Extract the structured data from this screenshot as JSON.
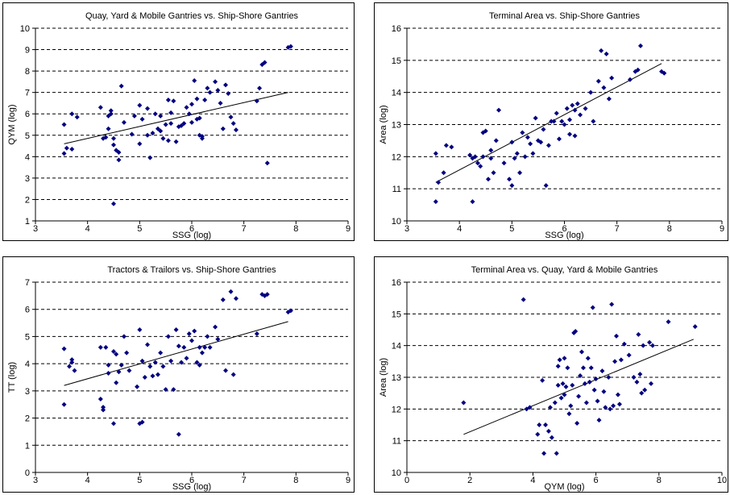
{
  "chart_data": [
    {
      "type": "scatter",
      "title": "Quay, Yard & Mobile Gantries vs. Ship-Shore Gantries",
      "xlabel": "SSG (log)",
      "ylabel": "QYM (log)",
      "xlim": [
        3,
        9
      ],
      "ylim": [
        1,
        10
      ],
      "xticks": [
        3,
        4,
        5,
        6,
        7,
        8,
        9
      ],
      "yticks": [
        1,
        2,
        3,
        4,
        5,
        6,
        7,
        8,
        9,
        10
      ],
      "grid": "horizontal-dashed",
      "marker_color": "#000080",
      "trendline": {
        "x": [
          3.55,
          7.85
        ],
        "y": [
          4.6,
          7.0
        ]
      },
      "points": [
        [
          3.55,
          5.5
        ],
        [
          3.55,
          4.15
        ],
        [
          3.6,
          4.4
        ],
        [
          3.7,
          4.35
        ],
        [
          3.7,
          6.0
        ],
        [
          3.8,
          5.85
        ],
        [
          4.25,
          6.3
        ],
        [
          4.3,
          4.85
        ],
        [
          4.35,
          4.9
        ],
        [
          4.4,
          5.9
        ],
        [
          4.45,
          6.15
        ],
        [
          4.4,
          5.3
        ],
        [
          4.45,
          6.0
        ],
        [
          4.5,
          4.55
        ],
        [
          4.5,
          4.85
        ],
        [
          4.55,
          4.3
        ],
        [
          4.6,
          3.85
        ],
        [
          4.6,
          4.2
        ],
        [
          4.65,
          7.3
        ],
        [
          4.7,
          5.6
        ],
        [
          4.5,
          1.8
        ],
        [
          4.85,
          5.05
        ],
        [
          4.9,
          5.9
        ],
        [
          5.0,
          6.4
        ],
        [
          5.0,
          4.6
        ],
        [
          5.05,
          5.75
        ],
        [
          5.15,
          6.25
        ],
        [
          5.15,
          5.0
        ],
        [
          5.2,
          3.95
        ],
        [
          5.25,
          5.1
        ],
        [
          5.3,
          6.0
        ],
        [
          5.35,
          5.3
        ],
        [
          5.4,
          5.2
        ],
        [
          5.4,
          5.9
        ],
        [
          5.45,
          4.85
        ],
        [
          5.5,
          5.5
        ],
        [
          5.55,
          6.65
        ],
        [
          5.55,
          4.75
        ],
        [
          5.6,
          5.55
        ],
        [
          5.6,
          6.05
        ],
        [
          5.65,
          6.6
        ],
        [
          5.7,
          4.7
        ],
        [
          5.75,
          5.4
        ],
        [
          5.8,
          5.45
        ],
        [
          5.85,
          5.55
        ],
        [
          5.9,
          6.3
        ],
        [
          5.95,
          6.0
        ],
        [
          6.0,
          6.45
        ],
        [
          6.0,
          5.6
        ],
        [
          6.05,
          7.55
        ],
        [
          6.1,
          5.75
        ],
        [
          6.1,
          6.7
        ],
        [
          6.15,
          5.8
        ],
        [
          6.15,
          5.0
        ],
        [
          6.2,
          4.95
        ],
        [
          6.2,
          4.85
        ],
        [
          6.25,
          6.65
        ],
        [
          6.3,
          7.2
        ],
        [
          6.35,
          7.0
        ],
        [
          6.45,
          7.5
        ],
        [
          6.5,
          7.1
        ],
        [
          6.55,
          6.5
        ],
        [
          6.6,
          5.3
        ],
        [
          6.65,
          7.35
        ],
        [
          6.7,
          6.95
        ],
        [
          6.75,
          5.85
        ],
        [
          6.8,
          5.55
        ],
        [
          6.85,
          5.25
        ],
        [
          7.25,
          6.6
        ],
        [
          7.3,
          7.2
        ],
        [
          7.35,
          8.3
        ],
        [
          7.4,
          8.4
        ],
        [
          7.45,
          3.7
        ],
        [
          7.85,
          9.1
        ],
        [
          7.9,
          9.15
        ]
      ]
    },
    {
      "type": "scatter",
      "title": "Terminal Area vs. Ship-Shore Gantries",
      "xlabel": "SSG (log)",
      "ylabel": "Area (log)",
      "xlim": [
        3,
        9
      ],
      "ylim": [
        10,
        16
      ],
      "xticks": [
        3,
        4,
        5,
        6,
        7,
        8,
        9
      ],
      "yticks": [
        10,
        11,
        12,
        13,
        14,
        15,
        16
      ],
      "grid": "horizontal-dashed",
      "marker_color": "#000080",
      "trendline": {
        "x": [
          3.55,
          7.85
        ],
        "y": [
          11.2,
          14.9
        ]
      },
      "points": [
        [
          3.55,
          10.6
        ],
        [
          3.55,
          12.1
        ],
        [
          3.6,
          11.2
        ],
        [
          3.7,
          11.5
        ],
        [
          3.75,
          12.35
        ],
        [
          3.85,
          12.3
        ],
        [
          4.2,
          12.05
        ],
        [
          4.25,
          10.6
        ],
        [
          4.25,
          11.95
        ],
        [
          4.3,
          12.0
        ],
        [
          4.35,
          11.8
        ],
        [
          4.4,
          11.7
        ],
        [
          4.45,
          12.0
        ],
        [
          4.45,
          12.75
        ],
        [
          4.5,
          12.8
        ],
        [
          4.55,
          11.3
        ],
        [
          4.6,
          12.2
        ],
        [
          4.6,
          11.95
        ],
        [
          4.65,
          11.5
        ],
        [
          4.7,
          12.5
        ],
        [
          4.75,
          13.45
        ],
        [
          4.85,
          11.8
        ],
        [
          4.95,
          11.3
        ],
        [
          5.0,
          11.1
        ],
        [
          5.0,
          12.45
        ],
        [
          5.05,
          11.95
        ],
        [
          5.1,
          12.1
        ],
        [
          5.15,
          11.5
        ],
        [
          5.2,
          12.75
        ],
        [
          5.25,
          12.0
        ],
        [
          5.3,
          12.6
        ],
        [
          5.35,
          12.4
        ],
        [
          5.4,
          12.1
        ],
        [
          5.45,
          13.2
        ],
        [
          5.5,
          12.5
        ],
        [
          5.55,
          12.45
        ],
        [
          5.6,
          12.85
        ],
        [
          5.65,
          11.1
        ],
        [
          5.7,
          12.35
        ],
        [
          5.75,
          13.1
        ],
        [
          5.8,
          13.1
        ],
        [
          5.85,
          13.35
        ],
        [
          5.9,
          12.55
        ],
        [
          5.95,
          13.1
        ],
        [
          6.0,
          13.0
        ],
        [
          6.05,
          13.5
        ],
        [
          6.1,
          13.15
        ],
        [
          6.1,
          12.7
        ],
        [
          6.15,
          13.6
        ],
        [
          6.2,
          12.65
        ],
        [
          6.2,
          13.45
        ],
        [
          6.25,
          13.65
        ],
        [
          6.3,
          13.3
        ],
        [
          6.4,
          13.5
        ],
        [
          6.5,
          14.0
        ],
        [
          6.55,
          13.1
        ],
        [
          6.65,
          14.35
        ],
        [
          6.7,
          15.3
        ],
        [
          6.75,
          14.15
        ],
        [
          6.8,
          15.2
        ],
        [
          6.85,
          13.8
        ],
        [
          6.9,
          14.45
        ],
        [
          7.25,
          14.4
        ],
        [
          7.35,
          14.65
        ],
        [
          7.4,
          14.7
        ],
        [
          7.45,
          15.45
        ],
        [
          7.85,
          14.65
        ],
        [
          7.9,
          14.6
        ]
      ]
    },
    {
      "type": "scatter",
      "title": "Tractors & Trailors vs. Ship-Shore Gantries",
      "xlabel": "SSG (log)",
      "ylabel": "TT (log)",
      "xlim": [
        3,
        9
      ],
      "ylim": [
        0,
        7
      ],
      "xticks": [
        3,
        4,
        5,
        6,
        7,
        8,
        9
      ],
      "yticks": [
        0,
        1,
        2,
        3,
        4,
        5,
        6,
        7
      ],
      "grid": "horizontal-dashed",
      "marker_color": "#000080",
      "trendline": {
        "x": [
          3.55,
          7.85
        ],
        "y": [
          3.2,
          5.55
        ]
      },
      "points": [
        [
          3.55,
          4.55
        ],
        [
          3.55,
          2.5
        ],
        [
          3.65,
          3.9
        ],
        [
          3.7,
          4.15
        ],
        [
          3.7,
          4.05
        ],
        [
          3.75,
          3.75
        ],
        [
          4.25,
          4.6
        ],
        [
          4.25,
          2.7
        ],
        [
          4.3,
          2.4
        ],
        [
          4.3,
          2.3
        ],
        [
          4.35,
          4.6
        ],
        [
          4.4,
          3.95
        ],
        [
          4.4,
          3.65
        ],
        [
          4.5,
          4.45
        ],
        [
          4.5,
          1.8
        ],
        [
          4.55,
          3.3
        ],
        [
          4.55,
          4.35
        ],
        [
          4.6,
          3.7
        ],
        [
          4.65,
          3.95
        ],
        [
          4.7,
          5.0
        ],
        [
          4.75,
          4.4
        ],
        [
          4.8,
          3.75
        ],
        [
          4.95,
          3.15
        ],
        [
          5.0,
          1.8
        ],
        [
          5.05,
          1.85
        ],
        [
          5.0,
          5.25
        ],
        [
          5.05,
          4.1
        ],
        [
          5.1,
          3.5
        ],
        [
          5.15,
          4.7
        ],
        [
          5.2,
          3.9
        ],
        [
          5.25,
          3.55
        ],
        [
          5.3,
          4.05
        ],
        [
          5.35,
          3.6
        ],
        [
          5.4,
          4.4
        ],
        [
          5.45,
          3.9
        ],
        [
          5.5,
          3.05
        ],
        [
          5.55,
          5.0
        ],
        [
          5.6,
          4.1
        ],
        [
          5.65,
          3.05
        ],
        [
          5.7,
          5.25
        ],
        [
          5.75,
          4.65
        ],
        [
          5.75,
          1.4
        ],
        [
          5.8,
          4.05
        ],
        [
          5.85,
          4.6
        ],
        [
          5.9,
          4.2
        ],
        [
          5.95,
          5.1
        ],
        [
          6.0,
          4.85
        ],
        [
          6.05,
          5.2
        ],
        [
          6.1,
          4.05
        ],
        [
          6.15,
          4.6
        ],
        [
          6.15,
          3.95
        ],
        [
          6.2,
          4.4
        ],
        [
          6.25,
          4.6
        ],
        [
          6.3,
          5.0
        ],
        [
          6.35,
          4.6
        ],
        [
          6.45,
          5.35
        ],
        [
          6.5,
          4.9
        ],
        [
          6.6,
          6.35
        ],
        [
          6.65,
          3.75
        ],
        [
          6.75,
          6.65
        ],
        [
          6.8,
          3.6
        ],
        [
          6.85,
          6.4
        ],
        [
          7.25,
          5.1
        ],
        [
          7.35,
          6.55
        ],
        [
          7.4,
          6.5
        ],
        [
          7.45,
          6.55
        ],
        [
          7.85,
          5.9
        ],
        [
          7.9,
          5.95
        ]
      ]
    },
    {
      "type": "scatter",
      "title": "Terminal Area vs. Quay, Yard & Mobile Gantries",
      "xlabel": "QYM (log)",
      "ylabel": "Area (log)",
      "xlim": [
        0,
        10
      ],
      "ylim": [
        10,
        16
      ],
      "xticks": [
        0,
        2,
        4,
        6,
        8,
        10
      ],
      "yticks": [
        10,
        11,
        12,
        13,
        14,
        15,
        16
      ],
      "grid": "horizontal-dashed",
      "marker_color": "#000080",
      "trendline": {
        "x": [
          1.8,
          9.1
        ],
        "y": [
          11.2,
          14.2
        ]
      },
      "points": [
        [
          1.8,
          12.2
        ],
        [
          3.7,
          15.45
        ],
        [
          3.8,
          12.0
        ],
        [
          3.9,
          12.05
        ],
        [
          4.15,
          11.2
        ],
        [
          4.2,
          11.5
        ],
        [
          4.3,
          12.9
        ],
        [
          4.35,
          10.6
        ],
        [
          4.4,
          11.5
        ],
        [
          4.5,
          11.3
        ],
        [
          4.55,
          12.05
        ],
        [
          4.6,
          11.1
        ],
        [
          4.7,
          12.2
        ],
        [
          4.75,
          10.6
        ],
        [
          4.8,
          12.75
        ],
        [
          4.8,
          13.35
        ],
        [
          4.85,
          13.55
        ],
        [
          4.9,
          12.35
        ],
        [
          4.95,
          12.8
        ],
        [
          5.0,
          13.6
        ],
        [
          5.0,
          12.45
        ],
        [
          5.05,
          12.7
        ],
        [
          5.1,
          13.3
        ],
        [
          5.15,
          11.85
        ],
        [
          5.2,
          12.1
        ],
        [
          5.25,
          12.75
        ],
        [
          5.3,
          14.4
        ],
        [
          5.35,
          14.45
        ],
        [
          5.4,
          11.55
        ],
        [
          5.45,
          12.4
        ],
        [
          5.5,
          13.05
        ],
        [
          5.55,
          13.8
        ],
        [
          5.6,
          13.3
        ],
        [
          5.65,
          12.8
        ],
        [
          5.7,
          12.2
        ],
        [
          5.75,
          13.6
        ],
        [
          5.8,
          12.85
        ],
        [
          5.85,
          13.3
        ],
        [
          5.9,
          15.2
        ],
        [
          5.95,
          12.6
        ],
        [
          6.0,
          12.95
        ],
        [
          6.05,
          12.25
        ],
        [
          6.1,
          11.65
        ],
        [
          6.2,
          13.2
        ],
        [
          6.25,
          12.55
        ],
        [
          6.3,
          12.05
        ],
        [
          6.4,
          13.0
        ],
        [
          6.45,
          12.0
        ],
        [
          6.5,
          15.3
        ],
        [
          6.55,
          12.1
        ],
        [
          6.6,
          13.5
        ],
        [
          6.65,
          14.3
        ],
        [
          6.7,
          12.45
        ],
        [
          6.75,
          12.15
        ],
        [
          6.8,
          13.55
        ],
        [
          6.9,
          14.05
        ],
        [
          7.05,
          13.7
        ],
        [
          7.2,
          13.0
        ],
        [
          7.3,
          12.85
        ],
        [
          7.35,
          14.35
        ],
        [
          7.4,
          13.1
        ],
        [
          7.45,
          12.5
        ],
        [
          7.5,
          14.0
        ],
        [
          7.55,
          12.6
        ],
        [
          7.7,
          14.1
        ],
        [
          7.75,
          12.8
        ],
        [
          7.8,
          14.0
        ],
        [
          8.3,
          14.75
        ],
        [
          9.15,
          14.6
        ]
      ]
    }
  ]
}
